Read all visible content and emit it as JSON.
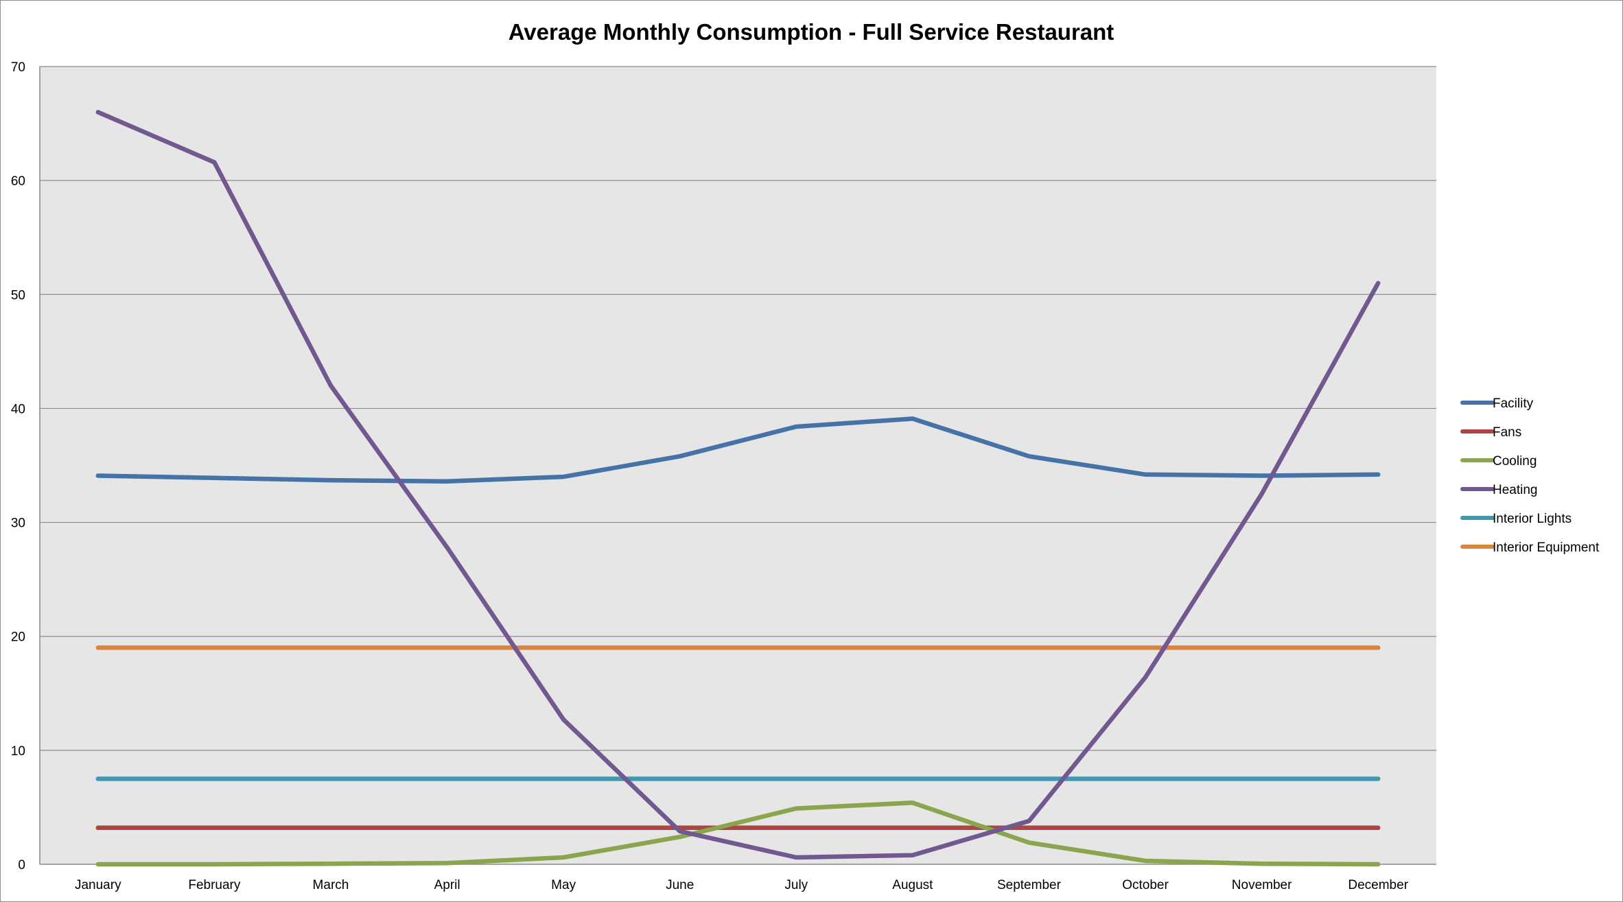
{
  "chart_data": {
    "type": "line",
    "title": "Average Monthly Consumption - Full Service Restaurant",
    "xlabel": "",
    "ylabel": "",
    "categories": [
      "January",
      "February",
      "March",
      "April",
      "May",
      "June",
      "July",
      "August",
      "September",
      "October",
      "November",
      "December"
    ],
    "ylim": [
      0,
      70
    ],
    "yticks": [
      "0",
      "10",
      "20",
      "30",
      "40",
      "50",
      "60",
      "70"
    ],
    "grid": true,
    "legend_position": "right",
    "plot_background": "#e6e6e6",
    "series": [
      {
        "name": "Facility",
        "color": "#4572a7",
        "values": [
          34.1,
          33.9,
          33.7,
          33.6,
          34.0,
          35.8,
          38.4,
          39.1,
          35.8,
          34.2,
          34.1,
          34.2
        ]
      },
      {
        "name": "Fans",
        "color": "#aa4643",
        "values": [
          3.2,
          3.2,
          3.2,
          3.2,
          3.2,
          3.2,
          3.2,
          3.2,
          3.2,
          3.2,
          3.2,
          3.2
        ]
      },
      {
        "name": "Cooling",
        "color": "#89a54e",
        "values": [
          0.0,
          0.0,
          0.05,
          0.1,
          0.6,
          2.4,
          4.9,
          5.4,
          1.9,
          0.3,
          0.05,
          0.0
        ]
      },
      {
        "name": "Heating",
        "color": "#71588f",
        "values": [
          66.0,
          61.6,
          42.0,
          27.8,
          12.7,
          2.9,
          0.6,
          0.8,
          3.8,
          16.4,
          32.5,
          51.0
        ]
      },
      {
        "name": "Interior Lights",
        "color": "#4198af",
        "values": [
          7.5,
          7.5,
          7.5,
          7.5,
          7.5,
          7.5,
          7.5,
          7.5,
          7.5,
          7.5,
          7.5,
          7.5
        ]
      },
      {
        "name": "Interior Equipment",
        "color": "#db843d",
        "values": [
          19.0,
          19.0,
          19.0,
          19.0,
          19.0,
          19.0,
          19.0,
          19.0,
          19.0,
          19.0,
          19.0,
          19.0
        ]
      }
    ]
  }
}
